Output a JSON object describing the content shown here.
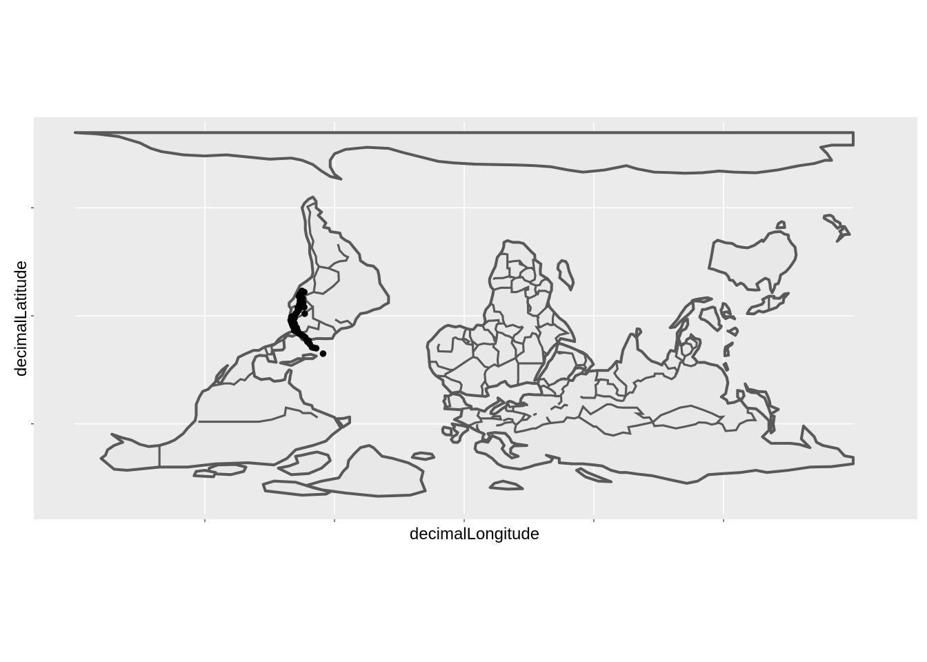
{
  "chart_data": {
    "type": "scatter",
    "subtype": "map-occurrences",
    "basemap": "world-country-outlines",
    "title": "",
    "xlabel": "decimalLongitude",
    "ylabel": "decimalLatitude",
    "xlim": [
      -180,
      180
    ],
    "ylim": [
      -90,
      90
    ],
    "x_major_breaks": [
      -120,
      -60,
      0,
      60,
      120
    ],
    "y_major_breaks": [
      -50,
      0,
      50
    ],
    "tick_labels_shown": false,
    "grid": true,
    "colors": {
      "panel_background": "#ebebeb",
      "land_fill": "#e8e8e8",
      "land_outline": "#595959",
      "gridlines": "#ffffff",
      "points": "#000000"
    },
    "points": [
      {
        "x": -75.5,
        "y": 10.5
      },
      {
        "x": -74.0,
        "y": 11.0
      },
      {
        "x": -74.5,
        "y": 10.8
      },
      {
        "x": -75.0,
        "y": 11.5
      },
      {
        "x": -76.5,
        "y": 9.0
      },
      {
        "x": -75.8,
        "y": 8.5
      },
      {
        "x": -74.8,
        "y": 8.0
      },
      {
        "x": -75.2,
        "y": 7.5
      },
      {
        "x": -76.0,
        "y": 7.0
      },
      {
        "x": -75.5,
        "y": 6.5
      },
      {
        "x": -74.5,
        "y": 6.0
      },
      {
        "x": -76.2,
        "y": 5.5
      },
      {
        "x": -75.6,
        "y": 5.0
      },
      {
        "x": -76.5,
        "y": 4.5
      },
      {
        "x": -77.0,
        "y": 3.8
      },
      {
        "x": -76.3,
        "y": 3.2
      },
      {
        "x": -76.8,
        "y": 2.5
      },
      {
        "x": -77.2,
        "y": 2.0
      },
      {
        "x": -77.5,
        "y": 1.5
      },
      {
        "x": -78.0,
        "y": 1.0
      },
      {
        "x": -78.8,
        "y": 0.0
      },
      {
        "x": -80.0,
        "y": -0.5
      },
      {
        "x": -78.5,
        "y": -1.0
      },
      {
        "x": -79.5,
        "y": -1.5
      },
      {
        "x": -80.3,
        "y": -2.0
      },
      {
        "x": -79.0,
        "y": -2.5
      },
      {
        "x": -80.0,
        "y": -3.0
      },
      {
        "x": -79.6,
        "y": -4.0
      },
      {
        "x": -78.5,
        "y": -3.5
      },
      {
        "x": -79.2,
        "y": -5.0
      },
      {
        "x": -78.0,
        "y": -6.0
      },
      {
        "x": -77.5,
        "y": -5.5
      },
      {
        "x": -78.6,
        "y": -6.8
      },
      {
        "x": -77.0,
        "y": -7.0
      },
      {
        "x": -76.8,
        "y": -8.0
      },
      {
        "x": -75.5,
        "y": -8.5
      },
      {
        "x": -75.0,
        "y": -9.0
      },
      {
        "x": -74.2,
        "y": -9.5
      },
      {
        "x": -73.5,
        "y": -10.0
      },
      {
        "x": -73.0,
        "y": -11.0
      },
      {
        "x": -72.0,
        "y": -11.5
      },
      {
        "x": -71.5,
        "y": -13.0
      },
      {
        "x": -70.5,
        "y": -14.5
      },
      {
        "x": -69.5,
        "y": -14.8
      },
      {
        "x": -68.5,
        "y": -15.0
      },
      {
        "x": -65.3,
        "y": -17.5
      },
      {
        "x": -72.5,
        "y": -12.0
      },
      {
        "x": -74.0,
        "y": 4.0
      },
      {
        "x": -73.8,
        "y": 1.0
      },
      {
        "x": -76.0,
        "y": 10.0
      }
    ]
  }
}
